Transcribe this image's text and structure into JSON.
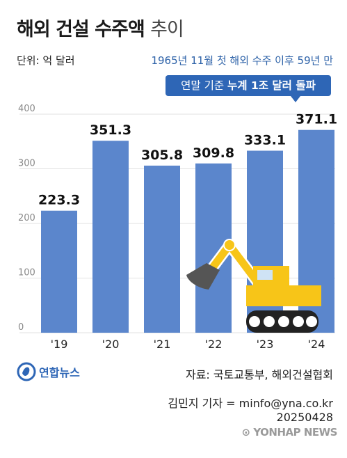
{
  "header": {
    "title_main": "해외 건설 수주액",
    "title_suffix": "추이",
    "unit": "단위: 억 달러",
    "note": "1965년 11월 첫 해외 수주 이후 59년 만",
    "callout_plain": "연말 기준 ",
    "callout_bold": "누계 1조 달러 돌파"
  },
  "chart_data": {
    "type": "bar",
    "categories": [
      "'19",
      "'20",
      "'21",
      "'22",
      "'23",
      "'24"
    ],
    "values": [
      223.3,
      351.3,
      305.8,
      309.8,
      333.1,
      371.1
    ],
    "value_labels": [
      "223.3",
      "351.3",
      "305.8",
      "309.8",
      "333.1",
      "371.1"
    ],
    "y_ticks": [
      "0",
      "100",
      "200",
      "300",
      "400"
    ],
    "ylim": [
      0,
      400
    ],
    "grid": true,
    "colors": {
      "bar": "#5b86cc",
      "grid": "#e2e2e2",
      "tick": "#888888",
      "excavator": "#f7c518"
    }
  },
  "footer": {
    "logo": "연합뉴스",
    "source": "자료: 국토교통부, 해외건설협회",
    "reporter": "김민지 기자 = minfo@yna.co.kr",
    "date": "20250428",
    "watermark": "YONHAP NEWS"
  }
}
